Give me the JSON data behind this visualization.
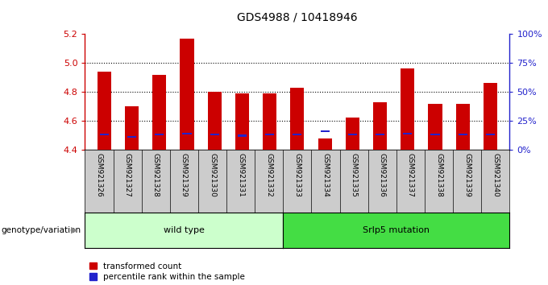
{
  "title": "GDS4988 / 10418946",
  "samples": [
    "GSM921326",
    "GSM921327",
    "GSM921328",
    "GSM921329",
    "GSM921330",
    "GSM921331",
    "GSM921332",
    "GSM921333",
    "GSM921334",
    "GSM921335",
    "GSM921336",
    "GSM921337",
    "GSM921338",
    "GSM921339",
    "GSM921340"
  ],
  "red_values": [
    4.94,
    4.7,
    4.92,
    5.17,
    4.8,
    4.79,
    4.79,
    4.83,
    4.48,
    4.62,
    4.73,
    4.96,
    4.72,
    4.72,
    4.86
  ],
  "blue_percentile": [
    13,
    11,
    13,
    14,
    13,
    12,
    13,
    13,
    16,
    13,
    13,
    14,
    13,
    13,
    13
  ],
  "ymin": 4.4,
  "ymax": 5.2,
  "yticks": [
    4.4,
    4.6,
    4.8,
    5.0,
    5.2
  ],
  "right_yticks": [
    0,
    25,
    50,
    75,
    100
  ],
  "right_yticklabels": [
    "0%",
    "25%",
    "50%",
    "75%",
    "100%"
  ],
  "group1_label": "wild type",
  "group1_count": 7,
  "group2_label": "Srlp5 mutation",
  "group2_count": 8,
  "group_label_prefix": "genotype/variation",
  "bar_color": "#cc0000",
  "blue_color": "#2222cc",
  "group1_bg": "#ccffcc",
  "group2_bg": "#44dd44",
  "tick_bg": "#cccccc",
  "bar_width": 0.5,
  "legend_red": "transformed count",
  "legend_blue": "percentile rank within the sample"
}
